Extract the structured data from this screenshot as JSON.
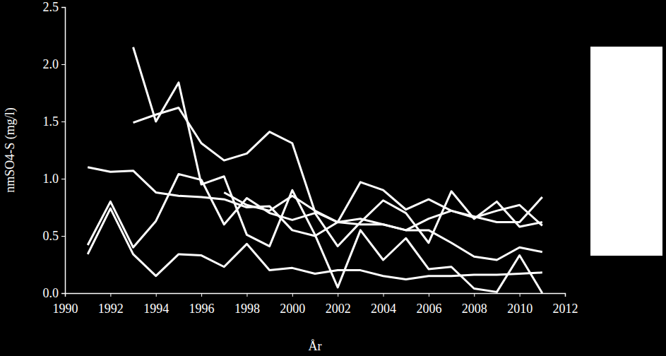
{
  "chart_data": {
    "type": "line",
    "x_label": "År",
    "y_label": "nmSO4-S (mg/l)",
    "x": [
      1991,
      1992,
      1993,
      1994,
      1995,
      1996,
      1997,
      1998,
      1999,
      2000,
      2001,
      2002,
      2003,
      2004,
      2005,
      2006,
      2007,
      2008,
      2009,
      2010,
      2011
    ],
    "series": [
      {
        "color": "#ffffff",
        "values": [
          null,
          null,
          2.15,
          1.5,
          1.84,
          0.95,
          1.02,
          0.51,
          0.41,
          0.9,
          0.51,
          0.05,
          0.55,
          0.29,
          0.48,
          0.21,
          0.23,
          0.04,
          0.01,
          0.33,
          0.0
        ]
      },
      {
        "color": "#ffffff",
        "values": [
          null,
          null,
          1.49,
          1.56,
          1.62,
          1.31,
          1.16,
          1.22,
          1.41,
          1.31,
          0.71,
          0.62,
          0.97,
          0.9,
          0.73,
          0.82,
          0.72,
          0.66,
          0.72,
          0.77,
          0.59
        ]
      },
      {
        "color": "#ffffff",
        "values": [
          1.1,
          1.06,
          1.07,
          0.88,
          0.85,
          0.84,
          0.82,
          0.75,
          0.76,
          0.55,
          0.5,
          0.62,
          0.6,
          0.6,
          0.55,
          0.55,
          0.44,
          0.32,
          0.29,
          0.4,
          0.36
        ]
      },
      {
        "color": "#ffffff",
        "values": [
          0.42,
          0.8,
          0.4,
          0.63,
          1.04,
          0.99,
          0.6,
          0.83,
          0.7,
          0.64,
          0.7,
          0.41,
          0.62,
          0.81,
          0.7,
          0.44,
          0.89,
          0.65,
          0.8,
          0.58,
          0.62
        ]
      },
      {
        "color": "#ffffff",
        "values": [
          0.34,
          0.74,
          0.34,
          0.15,
          0.34,
          0.33,
          0.23,
          0.43,
          0.2,
          0.22,
          0.17,
          0.2,
          0.2,
          0.15,
          0.12,
          0.15,
          0.15,
          0.16,
          0.16,
          0.17,
          0.18
        ]
      },
      {
        "color": "#ffffff",
        "values": [
          null,
          null,
          null,
          null,
          null,
          null,
          0.88,
          0.77,
          0.72,
          0.85,
          0.72,
          0.62,
          0.65,
          0.6,
          0.55,
          0.65,
          0.72,
          0.67,
          0.62,
          0.62,
          0.84
        ]
      }
    ],
    "xlim": [
      1990,
      2012
    ],
    "xticks": [
      1990,
      1992,
      1994,
      1996,
      1998,
      2000,
      2002,
      2004,
      2006,
      2008,
      2010,
      2012
    ],
    "ylim": [
      0,
      2.5
    ],
    "yticks": [
      {
        "value": 0,
        "label": "0.0"
      },
      0.5,
      {
        "value": 1,
        "label": "1.0"
      },
      1.5,
      {
        "value": 2,
        "label": "2.0"
      },
      2.5
    ],
    "grid": false
  }
}
